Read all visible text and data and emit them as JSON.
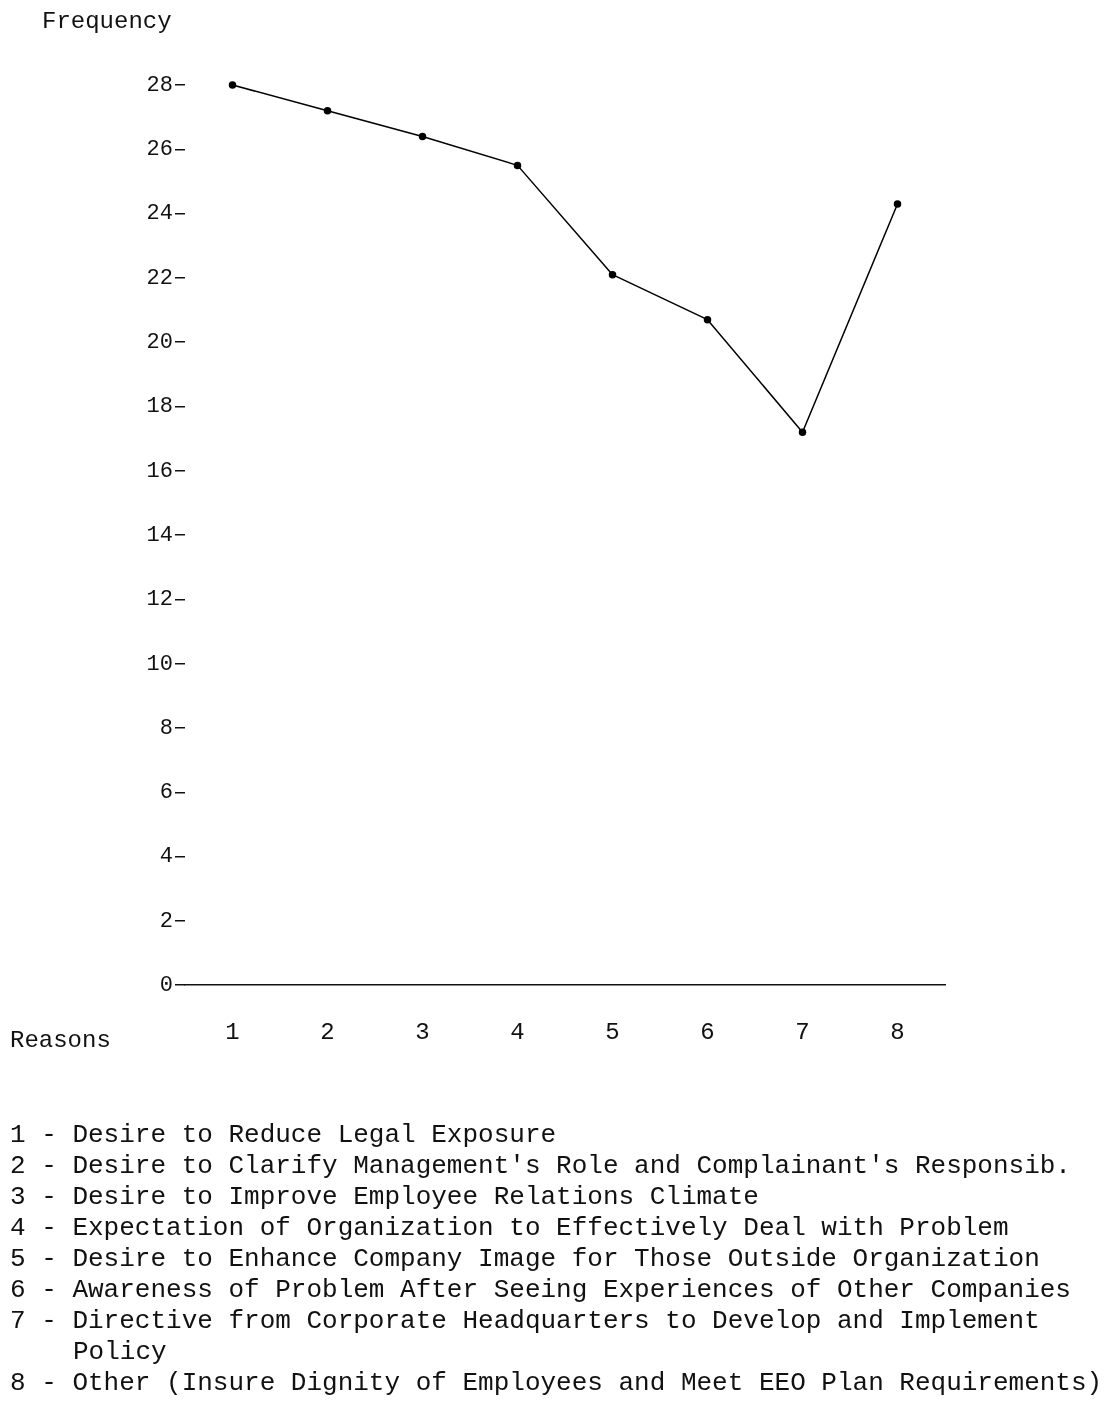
{
  "chart_data": {
    "type": "line",
    "xlabel": "Reasons",
    "ylabel": "Frequency",
    "categories": [
      "1",
      "2",
      "3",
      "4",
      "5",
      "6",
      "7",
      "8"
    ],
    "series": [
      {
        "color": "#000000",
        "values": [
          28.0,
          27.2,
          26.4,
          25.5,
          22.1,
          20.7,
          17.2,
          24.3
        ]
      }
    ],
    "ylim": [
      0,
      28
    ],
    "yticks": [
      0,
      2,
      4,
      6,
      8,
      10,
      12,
      14,
      16,
      18,
      20,
      22,
      24,
      26,
      28
    ],
    "grid": false,
    "legend": false,
    "marker": "circle",
    "line_style": "solid",
    "annotations": [
      "1 - Desire to Reduce Legal Exposure",
      "2 - Desire to Clarify Management's Role and Complainant's Responsib.",
      "3 - Desire to Improve Employee Relations Climate",
      "4 - Expectation of Organization to Effectively Deal with Problem",
      "5 - Desire to Enhance Company Image for Those Outside Organization",
      "6 - Awareness of Problem After Seeing Experiences of Other Companies",
      "7 - Directive from Corporate Headquarters to Develop and Implement Policy",
      "8 - Other (Insure Dignity of Employees and Meet EEO Plan Requirements)"
    ]
  }
}
